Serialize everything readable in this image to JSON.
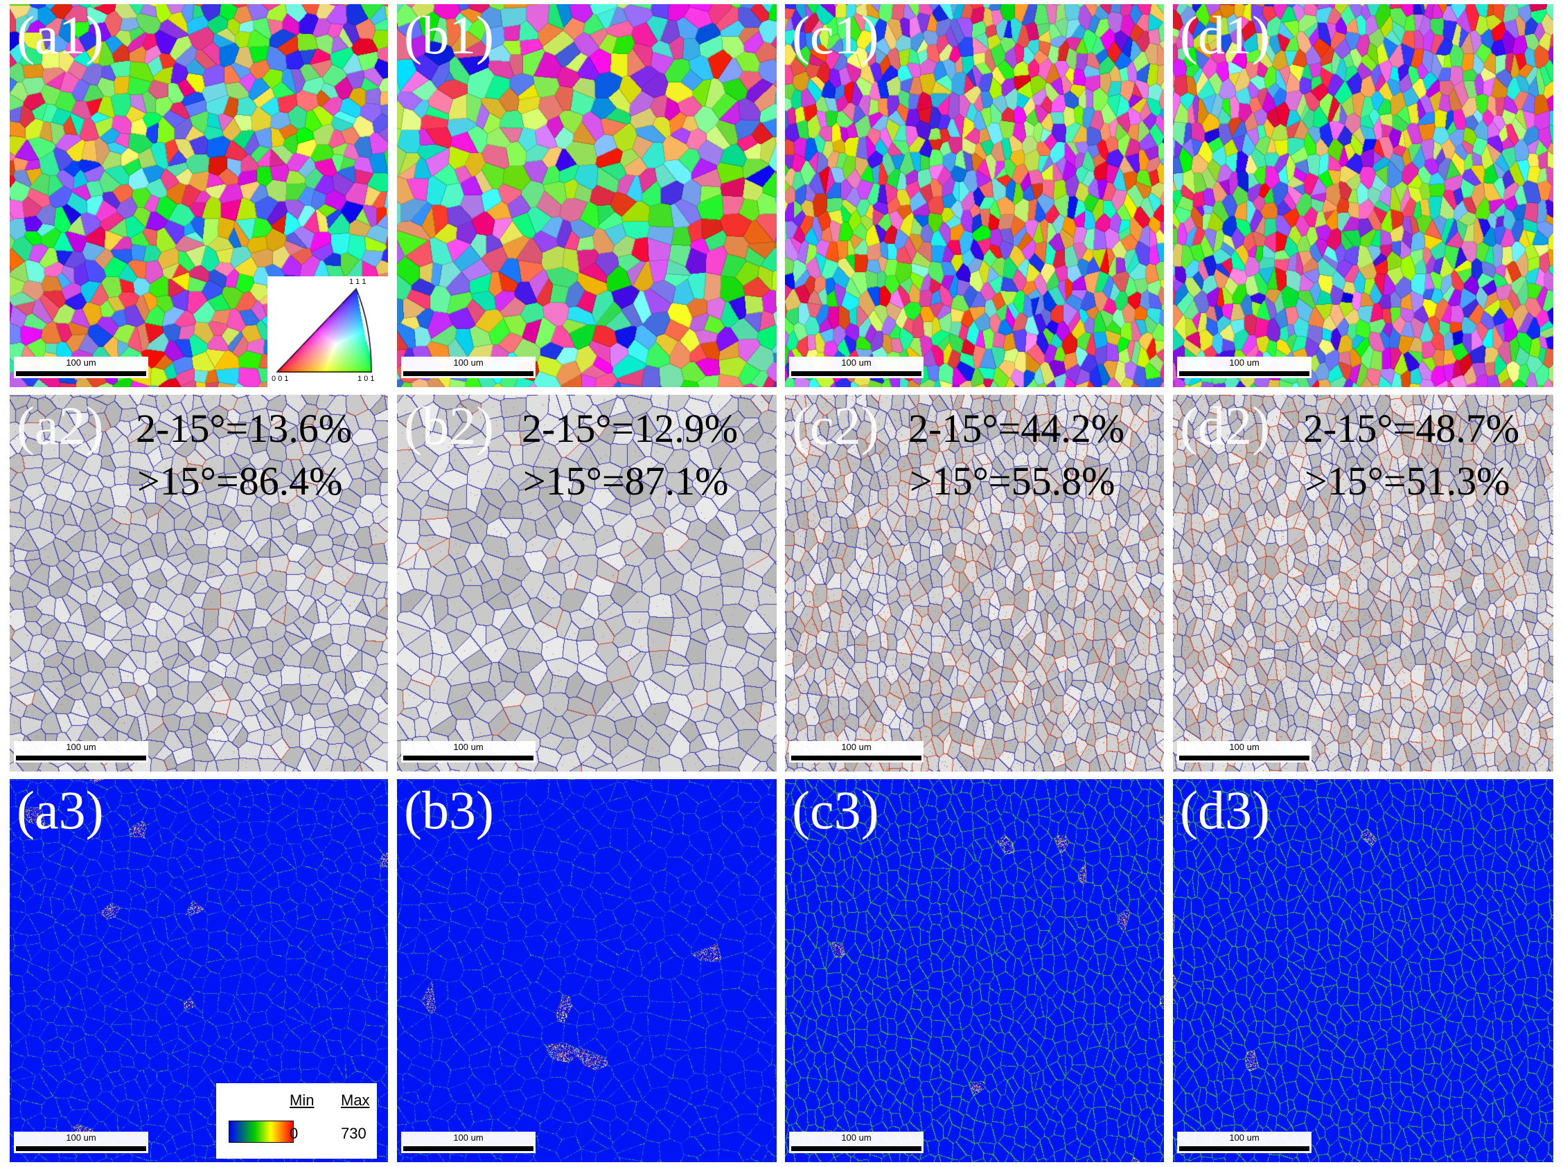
{
  "panels": [
    {
      "id": "a1",
      "label": "(a1)",
      "type": "ipf",
      "seed": 11,
      "cell": 22,
      "stretch": 1.0
    },
    {
      "id": "b1",
      "label": "(b1)",
      "type": "ipf",
      "seed": 23,
      "cell": 26,
      "stretch": 1.0
    },
    {
      "id": "c1",
      "label": "(c1)",
      "type": "ipf",
      "seed": 37,
      "cell": 15,
      "stretch": 1.45
    },
    {
      "id": "d1",
      "label": "(d1)",
      "type": "ipf",
      "seed": 41,
      "cell": 15,
      "stretch": 1.45
    },
    {
      "id": "a2",
      "label": "(a2)",
      "type": "boundary",
      "seed": 11,
      "cell": 22,
      "stretch": 1.0,
      "red": 0.06,
      "stat_low": "2-15°=13.6%",
      "stat_high": ">15°=86.4%"
    },
    {
      "id": "b2",
      "label": "(b2)",
      "type": "boundary",
      "seed": 23,
      "cell": 26,
      "stretch": 1.0,
      "red": 0.05,
      "stat_low": "2-15°=12.9%",
      "stat_high": ">15°=87.1%"
    },
    {
      "id": "c2",
      "label": "(c2)",
      "type": "boundary",
      "seed": 37,
      "cell": 15,
      "stretch": 1.45,
      "red": 0.3,
      "stat_low": "2-15°=44.2%",
      "stat_high": ">15°=55.8%"
    },
    {
      "id": "d2",
      "label": "(d2)",
      "type": "boundary",
      "seed": 41,
      "cell": 15,
      "stretch": 1.45,
      "red": 0.34,
      "stat_low": "2-15°=48.7%",
      "stat_high": ">15°=51.3%"
    },
    {
      "id": "a3",
      "label": "(a3)",
      "type": "kam",
      "seed": 11,
      "cell": 22,
      "stretch": 1.0,
      "green": 0.25
    },
    {
      "id": "b3",
      "label": "(b3)",
      "type": "kam",
      "seed": 23,
      "cell": 26,
      "stretch": 1.0,
      "green": 0.22
    },
    {
      "id": "c3",
      "label": "(c3)",
      "type": "kam",
      "seed": 37,
      "cell": 15,
      "stretch": 1.45,
      "green": 0.75
    },
    {
      "id": "d3",
      "label": "(d3)",
      "type": "kam",
      "seed": 41,
      "cell": 15,
      "stretch": 1.45,
      "green": 0.8
    }
  ],
  "scale_bar": {
    "label": "100 um"
  },
  "ipf_key": {
    "top": "1 1 1",
    "left": "0 0 1",
    "right": "1 0 1"
  },
  "kam_legend": {
    "min_label": "Min",
    "max_label": "Max",
    "min_value": "0",
    "max_value": "730",
    "colors": [
      "#0000ff",
      "#00cc00",
      "#ffff00",
      "#ff0000"
    ]
  }
}
